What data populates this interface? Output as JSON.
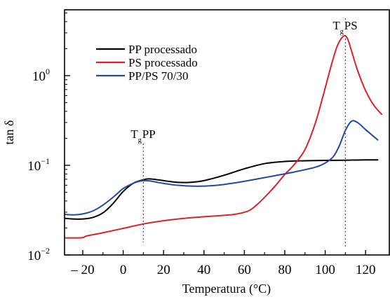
{
  "chart_data": {
    "type": "line",
    "xlabel": "Temperatura (°C)",
    "ylabel": "tan δ",
    "xlim": [
      -30,
      128
    ],
    "ylim_log10": [
      -2,
      0.7
    ],
    "y_scale": "log",
    "grid": false,
    "legend_position": "top-left",
    "x_ticks": [
      {
        "value": -20,
        "label": "– 20"
      },
      {
        "value": 0,
        "label": "0"
      },
      {
        "value": 20,
        "label": "20"
      },
      {
        "value": 40,
        "label": "40"
      },
      {
        "value": 60,
        "label": "60"
      },
      {
        "value": 80,
        "label": "80"
      },
      {
        "value": 100,
        "label": "100"
      },
      {
        "value": 120,
        "label": "120"
      }
    ],
    "y_ticks": [
      {
        "value": 0.01,
        "base": "10",
        "exp": "−2"
      },
      {
        "value": 0.1,
        "base": "10",
        "exp": "−1"
      },
      {
        "value": 1,
        "base": "10",
        "exp": "0"
      }
    ],
    "annotations": [
      {
        "main": "T",
        "sub": "g",
        "rest": "PP",
        "x": 10
      },
      {
        "main": "T",
        "sub": "g",
        "rest": "PS",
        "x": 110
      }
    ],
    "series": [
      {
        "name": "PP processado",
        "color": "#000000",
        "points": [
          [
            -30,
            0.0258
          ],
          [
            -25,
            0.0252
          ],
          [
            -20,
            0.0252
          ],
          [
            -15,
            0.0262
          ],
          [
            -10,
            0.0295
          ],
          [
            -5,
            0.0375
          ],
          [
            0,
            0.051
          ],
          [
            5,
            0.063
          ],
          [
            10,
            0.069
          ],
          [
            13,
            0.0705
          ],
          [
            18,
            0.0685
          ],
          [
            22,
            0.0665
          ],
          [
            27,
            0.0645
          ],
          [
            33,
            0.0645
          ],
          [
            40,
            0.0675
          ],
          [
            50,
            0.0775
          ],
          [
            60,
            0.0915
          ],
          [
            70,
            0.1045
          ],
          [
            80,
            0.1105
          ],
          [
            90,
            0.1125
          ],
          [
            100,
            0.1135
          ],
          [
            110,
            0.114
          ],
          [
            120,
            0.115
          ],
          [
            126,
            0.115
          ]
        ]
      },
      {
        "name": "PS processado",
        "color": "#e11f2a",
        "points": [
          [
            -30,
            0.0155
          ],
          [
            -25,
            0.0155
          ],
          [
            -20,
            0.0156
          ],
          [
            -18,
            0.0163
          ],
          [
            -10,
            0.0177
          ],
          [
            0,
            0.0198
          ],
          [
            10,
            0.0222
          ],
          [
            20,
            0.0241
          ],
          [
            30,
            0.0256
          ],
          [
            40,
            0.0267
          ],
          [
            50,
            0.0277
          ],
          [
            56,
            0.0286
          ],
          [
            62,
            0.031
          ],
          [
            66,
            0.036
          ],
          [
            70,
            0.044
          ],
          [
            75,
            0.058
          ],
          [
            80,
            0.079
          ],
          [
            85,
            0.104
          ],
          [
            90,
            0.15
          ],
          [
            95,
            0.29
          ],
          [
            99,
            0.6
          ],
          [
            103,
            1.3
          ],
          [
            106,
            2.15
          ],
          [
            109,
            2.75
          ],
          [
            111,
            2.6
          ],
          [
            113,
            1.9
          ],
          [
            116,
            1.15
          ],
          [
            120,
            0.68
          ],
          [
            124,
            0.47
          ],
          [
            128,
            0.37
          ]
        ]
      },
      {
        "name": "PP/PS 70/30",
        "color": "#1f4aa8",
        "points": [
          [
            -30,
            0.0285
          ],
          [
            -25,
            0.028
          ],
          [
            -20,
            0.0287
          ],
          [
            -15,
            0.031
          ],
          [
            -10,
            0.036
          ],
          [
            -5,
            0.044
          ],
          [
            0,
            0.055
          ],
          [
            5,
            0.063
          ],
          [
            9,
            0.067
          ],
          [
            13,
            0.067
          ],
          [
            18,
            0.064
          ],
          [
            25,
            0.0605
          ],
          [
            35,
            0.0585
          ],
          [
            45,
            0.0595
          ],
          [
            55,
            0.0635
          ],
          [
            65,
            0.0695
          ],
          [
            75,
            0.0765
          ],
          [
            85,
            0.0845
          ],
          [
            95,
            0.095
          ],
          [
            100,
            0.106
          ],
          [
            104,
            0.125
          ],
          [
            107,
            0.165
          ],
          [
            110,
            0.245
          ],
          [
            113,
            0.31
          ],
          [
            116,
            0.3
          ],
          [
            120,
            0.25
          ],
          [
            126,
            0.192
          ]
        ]
      }
    ]
  }
}
